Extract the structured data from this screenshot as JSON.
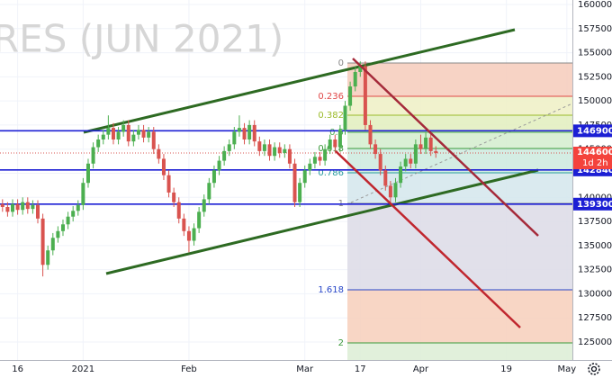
{
  "chart_data": {
    "type": "candlestick",
    "watermark": "RES (JUN 2021)",
    "up_color": "#4caf50",
    "down_color": "#d9534f",
    "grid": true,
    "xlim": [
      -0.5,
      113.1
    ],
    "ylim": [
      123133,
      160467
    ],
    "xticks": [
      {
        "value": 3,
        "label": "16"
      },
      {
        "value": 16,
        "label": "2021"
      },
      {
        "value": 37,
        "label": "Feb"
      },
      {
        "value": 60,
        "label": "Mar"
      },
      {
        "value": 71,
        "label": "17"
      },
      {
        "value": 83,
        "label": "Apr"
      },
      {
        "value": 100,
        "label": "19"
      },
      {
        "value": 112,
        "label": "May"
      }
    ],
    "yticks": [
      125000,
      127500,
      130000,
      132500,
      135000,
      137500,
      140000,
      142500,
      145000,
      147500,
      150000,
      152500,
      155000,
      157500,
      160000
    ],
    "open": [
      139300,
      139000,
      138500,
      139300,
      138700,
      139500,
      138800,
      139200,
      137800,
      133000,
      134500,
      135800,
      136500,
      137200,
      138000,
      138600,
      139200,
      141500,
      143500,
      145200,
      146000,
      146500,
      147200,
      146000,
      146800,
      147500,
      145800,
      146500,
      147000,
      146200,
      146800,
      145000,
      144000,
      142300,
      140500,
      139500,
      137800,
      136500,
      135500,
      136800,
      138500,
      139800,
      141500,
      142800,
      143800,
      144800,
      145500,
      146800,
      147200,
      146000,
      147500,
      145800,
      144800,
      145500,
      144300,
      145200,
      144600,
      145000,
      143500,
      139500,
      141500,
      142800,
      143500,
      144200,
      143800,
      145000,
      146000,
      145200,
      147000,
      149500,
      151500,
      153000,
      153600,
      147500,
      145500,
      144500,
      142800,
      141200,
      140000,
      141500,
      143200,
      144000,
      143500,
      145500,
      145000,
      146200,
      144800
    ],
    "high": [
      139800,
      139500,
      139800,
      139800,
      140000,
      140000,
      139700,
      139700,
      138300,
      135000,
      136300,
      137000,
      137700,
      138500,
      139100,
      139700,
      142000,
      144000,
      145700,
      146500,
      147000,
      148500,
      147700,
      147300,
      148000,
      148000,
      147000,
      147500,
      147500,
      147300,
      147300,
      145500,
      144500,
      142800,
      141000,
      140000,
      138300,
      137000,
      137300,
      139000,
      140300,
      142000,
      143300,
      144300,
      145300,
      146000,
      147300,
      148500,
      147700,
      148000,
      148000,
      146300,
      146000,
      146000,
      145700,
      145700,
      145500,
      145500,
      144000,
      142000,
      143300,
      144000,
      144700,
      144700,
      145500,
      146500,
      146500,
      147500,
      150000,
      152000,
      153500,
      154100,
      154100,
      148000,
      146000,
      145000,
      143300,
      141700,
      142000,
      143700,
      144500,
      144500,
      146000,
      146500,
      146700,
      146700,
      145300
    ],
    "low": [
      138500,
      138000,
      138000,
      138200,
      138200,
      138300,
      138300,
      137300,
      131800,
      132500,
      134000,
      135300,
      136000,
      136700,
      137500,
      138100,
      138700,
      141000,
      143000,
      144700,
      145500,
      146000,
      145500,
      145500,
      146300,
      145300,
      145300,
      146000,
      145700,
      145700,
      144500,
      143500,
      141800,
      140000,
      139000,
      137300,
      136000,
      134300,
      135000,
      136300,
      138000,
      139300,
      141000,
      142300,
      143300,
      144300,
      145000,
      146300,
      145500,
      145500,
      145300,
      144300,
      144300,
      143800,
      143800,
      144100,
      144100,
      143000,
      139000,
      139000,
      141000,
      142300,
      143000,
      143300,
      143300,
      144500,
      144700,
      144700,
      146500,
      149000,
      151000,
      152500,
      147000,
      145000,
      144000,
      142300,
      140700,
      139200,
      139500,
      141000,
      142700,
      143000,
      143000,
      144500,
      144500,
      144300,
      144100
    ],
    "close": [
      139000,
      138500,
      139300,
      138700,
      139500,
      138800,
      139200,
      137800,
      133000,
      134500,
      135800,
      136500,
      137200,
      138000,
      138600,
      139200,
      141500,
      143500,
      145200,
      146000,
      146500,
      147200,
      146000,
      146800,
      147500,
      145800,
      146500,
      147000,
      146200,
      146800,
      145000,
      144000,
      142300,
      140500,
      139500,
      137800,
      136500,
      135500,
      136800,
      138500,
      139800,
      141500,
      142800,
      143800,
      144800,
      145500,
      146800,
      147200,
      146000,
      147500,
      145800,
      144800,
      145500,
      144300,
      145200,
      144600,
      145000,
      143500,
      139500,
      141500,
      142800,
      143500,
      144200,
      143800,
      145000,
      146000,
      145200,
      147000,
      149500,
      151500,
      153000,
      153600,
      147500,
      145500,
      144500,
      142800,
      141200,
      140000,
      141500,
      143200,
      144000,
      143500,
      145500,
      145000,
      146200,
      144800,
      144600
    ],
    "levels": [
      146900,
      142840,
      139300
    ],
    "level_color": "#1c1fd4",
    "last_price": 144600,
    "countdown": "1d 2h",
    "fib": {
      "ratios": [
        0,
        0.236,
        0.382,
        0.5,
        0.618,
        0.786,
        1,
        1.618,
        2
      ],
      "prices": [
        153934,
        150480,
        148520,
        146747,
        145067,
        142547,
        139373,
        130413,
        124907
      ],
      "colors": [
        "#888888",
        "#e04848",
        "#9bbb2a",
        "#4caf50",
        "#3a9a3a",
        "#2a9d9d",
        "#888888",
        "#2645c8",
        "#3a9a3a"
      ],
      "band_colors": [
        "#f6cbbb",
        "#eef0c4",
        "#e2efbd",
        "#d3edce",
        "#cdeade",
        "#d4e6ec",
        "#dcdbe6",
        "#f7cfbb",
        "#dcedd5"
      ]
    }
  }
}
